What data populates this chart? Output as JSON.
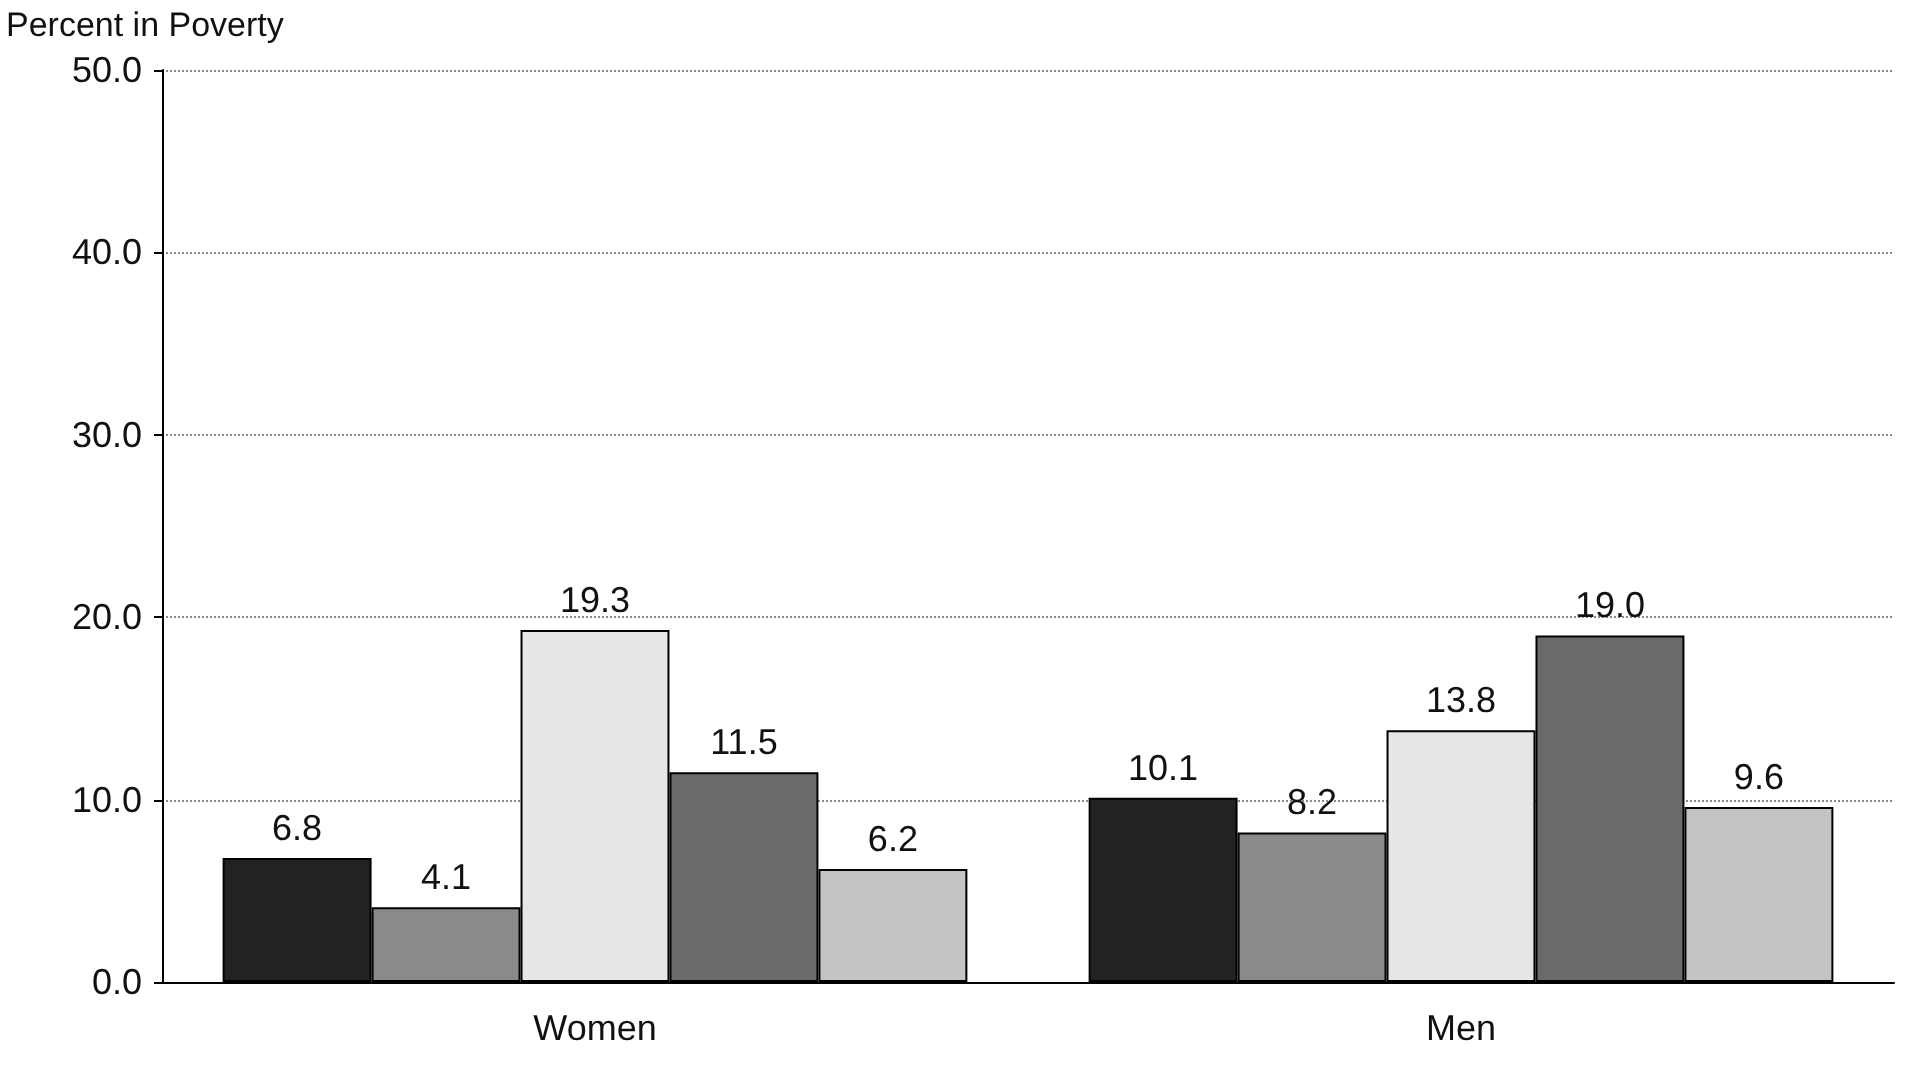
{
  "chart_data": {
    "type": "bar",
    "ylabel": "Percent in Poverty",
    "categories": [
      "Women",
      "Men"
    ],
    "series": [
      {
        "color": "#222222",
        "values": [
          6.8,
          10.1
        ],
        "value_labels": [
          "6.8",
          "10.1"
        ]
      },
      {
        "color": "#8a8a8a",
        "values": [
          4.1,
          8.2
        ],
        "value_labels": [
          "4.1",
          "8.2"
        ]
      },
      {
        "color": "#e6e6e6",
        "values": [
          19.3,
          13.8
        ],
        "value_labels": [
          "19.3",
          "13.8"
        ]
      },
      {
        "color": "#6a6a6a",
        "values": [
          11.5,
          19.0
        ],
        "value_labels": [
          "11.5",
          "19.0"
        ]
      },
      {
        "color": "#c4c4c4",
        "values": [
          6.2,
          9.6
        ],
        "value_labels": [
          "6.2",
          "9.6"
        ]
      }
    ],
    "ylim": [
      0,
      50
    ],
    "yticks": [
      {
        "value": 0,
        "label": "0.0"
      },
      {
        "value": 10,
        "label": "10.0"
      },
      {
        "value": 20,
        "label": "20.0"
      },
      {
        "value": 30,
        "label": "30.0"
      },
      {
        "value": 40,
        "label": "40.0"
      },
      {
        "value": 50,
        "label": "50.0"
      }
    ],
    "grid": true
  }
}
